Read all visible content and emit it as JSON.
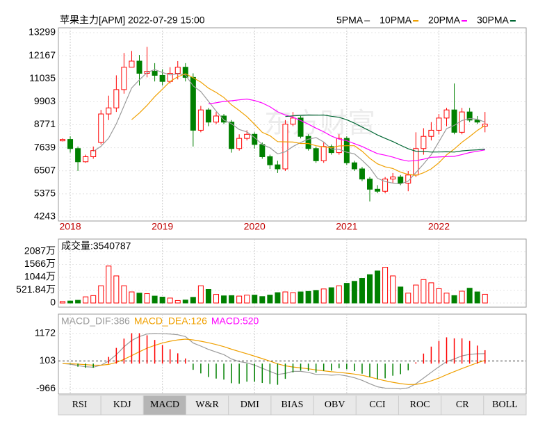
{
  "chart_data": [
    {
      "type": "candlestick",
      "title": "苹果主力[APM] 2022-07-29 15:00",
      "watermark": "东方财富",
      "categories": [
        null,
        "2018",
        null,
        null,
        null,
        null,
        null,
        null,
        null,
        null,
        null,
        null,
        null,
        "2019",
        null,
        null,
        null,
        null,
        null,
        null,
        null,
        null,
        null,
        null,
        null,
        "2020",
        null,
        null,
        null,
        null,
        null,
        null,
        null,
        null,
        null,
        null,
        null,
        "2021",
        null,
        null,
        null,
        null,
        null,
        null,
        null,
        null,
        null,
        null,
        null,
        "2022",
        null,
        null,
        null,
        null,
        null,
        null
      ],
      "open": [
        7980,
        8050,
        7600,
        6950,
        7200,
        7900,
        9300,
        9600,
        10500,
        11600,
        11900,
        11300,
        11400,
        11200,
        10900,
        11300,
        11600,
        11100,
        8500,
        9500,
        8900,
        9200,
        8900,
        7600,
        8100,
        8300,
        7800,
        7200,
        6800,
        6600,
        8800,
        9100,
        8200,
        7600,
        7000,
        7700,
        7400,
        8100,
        6900,
        6600,
        6100,
        5600,
        5500,
        6100,
        6200,
        5900,
        6300,
        7600,
        8200,
        8500,
        9100,
        9500,
        8400,
        9400,
        9000,
        8700
      ],
      "high": [
        8100,
        8200,
        7700,
        7300,
        7700,
        9500,
        10200,
        11200,
        12300,
        12400,
        12200,
        12600,
        11800,
        11500,
        11600,
        11900,
        11800,
        11300,
        9700,
        9600,
        9400,
        9300,
        9000,
        8300,
        8500,
        8400,
        7900,
        7300,
        7000,
        9000,
        9400,
        9200,
        8300,
        7700,
        7900,
        7800,
        8300,
        8200,
        7000,
        6700,
        6200,
        5800,
        6200,
        6400,
        6300,
        6500,
        8400,
        8600,
        8900,
        9300,
        9600,
        10800,
        9600,
        9600,
        9200,
        9400
      ],
      "low": [
        7950,
        7400,
        6500,
        6900,
        7100,
        7800,
        9000,
        9400,
        10300,
        11600,
        10700,
        11100,
        10900,
        10700,
        10800,
        11000,
        10900,
        7700,
        8400,
        8700,
        8800,
        8800,
        7400,
        7500,
        8000,
        7600,
        7100,
        6600,
        6400,
        6500,
        8700,
        8100,
        7500,
        6900,
        6900,
        7300,
        7300,
        6800,
        6500,
        6000,
        5000,
        5400,
        5400,
        5900,
        5800,
        5500,
        6200,
        7300,
        8000,
        8300,
        8700,
        8300,
        8300,
        8900,
        8800,
        8400
      ],
      "close": [
        8050,
        7600,
        6950,
        7200,
        7500,
        9300,
        9600,
        10500,
        11600,
        11900,
        11300,
        11400,
        11200,
        10900,
        11300,
        11600,
        11100,
        8500,
        9500,
        8900,
        9200,
        8900,
        7600,
        8100,
        8300,
        7800,
        7200,
        6800,
        6600,
        8800,
        9100,
        8200,
        7600,
        7000,
        7700,
        7400,
        8100,
        6900,
        6600,
        6100,
        5600,
        5500,
        6100,
        6200,
        5900,
        6300,
        7600,
        8200,
        8500,
        9100,
        9500,
        8400,
        9400,
        9000,
        8900,
        8800
      ],
      "up_color": "#ff0000",
      "down_color": "#008000",
      "series": [
        {
          "name": "5PMA",
          "color": "#9a9a9a",
          "values": [
            null,
            null,
            null,
            null,
            7460,
            7710,
            8110,
            8820,
            9700,
            10580,
            10980,
            11340,
            11480,
            11340,
            11220,
            11280,
            11220,
            10680,
            10400,
            9920,
            9440,
            9000,
            8820,
            8540,
            8420,
            8140,
            7800,
            7640,
            7340,
            7440,
            7700,
            7900,
            8060,
            8140,
            7920,
            7580,
            7560,
            7420,
            7340,
            7020,
            6660,
            6140,
            5980,
            5900,
            5860,
            6000,
            6420,
            6840,
            7300,
            7940,
            8580,
            8740,
            8980,
            9080,
            9040,
            8900
          ]
        },
        {
          "name": "10PMA",
          "color": "#f0a000",
          "values": [
            null,
            null,
            null,
            null,
            null,
            null,
            null,
            null,
            null,
            9020,
            9345,
            9725,
            10150,
            10520,
            10900,
            11130,
            11280,
            11080,
            10870,
            10570,
            10360,
            10110,
            9750,
            9470,
            9170,
            8790,
            8400,
            8230,
            7940,
            7930,
            7920,
            7850,
            7850,
            7740,
            7680,
            7640,
            7730,
            7740,
            7740,
            7470,
            7120,
            6850,
            6700,
            6620,
            6440,
            6330,
            6280,
            6410,
            6600,
            6900,
            7290,
            7580,
            7910,
            8190,
            8490,
            8740
          ]
        },
        {
          "name": "20PMA",
          "color": "#ff00ff",
          "values": [
            null,
            null,
            null,
            null,
            null,
            null,
            null,
            null,
            null,
            null,
            null,
            null,
            null,
            null,
            null,
            null,
            null,
            null,
            null,
            9795,
            9850,
            9920,
            9950,
            9995,
            10035,
            9960,
            9840,
            9655,
            9405,
            9250,
            9140,
            8980,
            8800,
            8605,
            8425,
            8215,
            8065,
            7985,
            7840,
            7700,
            7520,
            7350,
            7275,
            7180,
            7060,
            6985,
            7005,
            7075,
            7170,
            7185,
            7205,
            7215,
            7305,
            7405,
            7465,
            7535
          ]
        },
        {
          "name": "30PMA",
          "color": "#006633",
          "values": [
            null,
            null,
            null,
            null,
            null,
            null,
            null,
            null,
            null,
            null,
            null,
            null,
            null,
            null,
            null,
            null,
            null,
            null,
            null,
            null,
            null,
            null,
            null,
            null,
            null,
            null,
            null,
            null,
            null,
            9173,
            9208,
            9228,
            9250,
            9243,
            9250,
            9187,
            9137,
            9017,
            8850,
            8657,
            8467,
            8270,
            8100,
            7943,
            7763,
            7587,
            7470,
            7460,
            7427,
            7433,
            7443,
            7427,
            7487,
            7517,
            7537,
            7570
          ]
        }
      ],
      "ylim": [
        4243,
        13299
      ],
      "yticks": [
        4243,
        5375,
        6507,
        7639,
        8771,
        9903,
        11035,
        12167,
        13299
      ],
      "grid": true
    },
    {
      "type": "bar",
      "title": "成交量:3540787",
      "values": [
        60,
        80,
        110,
        250,
        300,
        700,
        1500,
        1100,
        700,
        450,
        400,
        380,
        280,
        240,
        200,
        100,
        120,
        230,
        700,
        550,
        350,
        290,
        300,
        280,
        320,
        320,
        260,
        320,
        420,
        450,
        420,
        450,
        470,
        510,
        570,
        620,
        700,
        800,
        880,
        1000,
        1150,
        1300,
        1450,
        1100,
        650,
        400,
        730,
        950,
        820,
        580,
        400,
        300,
        480,
        600,
        450,
        354.0787
      ],
      "up_color": "#ff0000",
      "down_color": "#008000",
      "ylim": [
        0,
        2087
      ],
      "yticks": [
        0,
        {
          "value": 521.84,
          "label": "521.84万"
        },
        {
          "value": 1044,
          "label": "1044万"
        },
        {
          "value": 1566,
          "label": "1566万"
        },
        {
          "value": 2087,
          "label": "2087万"
        }
      ]
    },
    {
      "type": "macd",
      "series": [
        {
          "name": "MACD_DIF:386",
          "color": "#9a9a9a",
          "kind": "line",
          "values": [
            0,
            -20,
            -80,
            -120,
            -140,
            -60,
            100,
            350,
            650,
            900,
            1050,
            1150,
            1170,
            1160,
            1150,
            1120,
            1050,
            800,
            680,
            550,
            450,
            350,
            180,
            80,
            30,
            -60,
            -180,
            -300,
            -420,
            -380,
            -300,
            -300,
            -340,
            -420,
            -420,
            -450,
            -430,
            -480,
            -550,
            -650,
            -780,
            -900,
            -950,
            -960,
            -980,
            -940,
            -780,
            -560,
            -340,
            -120,
            80,
            180,
            300,
            360,
            380,
            386
          ]
        },
        {
          "name": "MACD_DEA:126",
          "color": "#f0a000",
          "kind": "line",
          "values": [
            0,
            -5,
            -20,
            -40,
            -60,
            -60,
            -30,
            45,
            165,
            310,
            460,
            600,
            710,
            800,
            870,
            920,
            950,
            920,
            870,
            810,
            740,
            660,
            560,
            470,
            380,
            290,
            195,
            95,
            -10,
            -85,
            -130,
            -165,
            -200,
            -245,
            -280,
            -315,
            -340,
            -370,
            -405,
            -455,
            -520,
            -595,
            -665,
            -725,
            -775,
            -810,
            -805,
            -755,
            -670,
            -560,
            -430,
            -310,
            -190,
            -80,
            30,
            126
          ]
        },
        {
          "name": "MACD:520",
          "color": "#ff00ff",
          "kind": "bar",
          "values": [
            0,
            -30,
            -120,
            -160,
            -160,
            0,
            260,
            610,
            970,
            1180,
            1180,
            1100,
            920,
            720,
            560,
            400,
            200,
            -240,
            -380,
            -520,
            -580,
            -620,
            -760,
            -780,
            -700,
            -700,
            -750,
            -790,
            -820,
            -590,
            -340,
            -270,
            -280,
            -350,
            -280,
            -270,
            -180,
            -220,
            -290,
            -390,
            -520,
            -610,
            -570,
            -470,
            -410,
            -260,
            50,
            390,
            660,
            880,
            1020,
            980,
            980,
            880,
            700,
            520
          ]
        }
      ],
      "up_color": "#ff0000",
      "down_color": "#008000",
      "ylim": [
        -1153,
        1840
      ],
      "yticks": [
        -966,
        103,
        1172
      ]
    }
  ],
  "tabs": [
    {
      "label": "RSI"
    },
    {
      "label": "KDJ"
    },
    {
      "label": "MACD"
    },
    {
      "label": "W&R"
    },
    {
      "label": "DMI"
    },
    {
      "label": "BIAS"
    },
    {
      "label": "OBV"
    },
    {
      "label": "CCI"
    },
    {
      "label": "ROC"
    },
    {
      "label": "CR"
    },
    {
      "label": "BOLL"
    }
  ],
  "selected_tab": 2
}
